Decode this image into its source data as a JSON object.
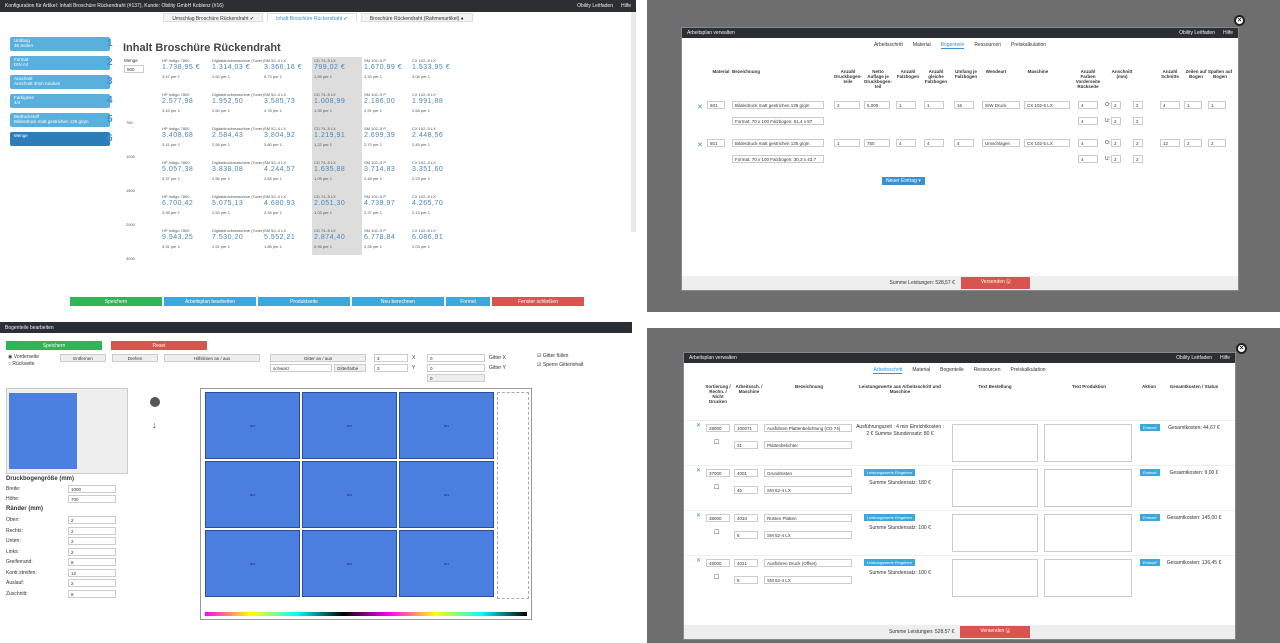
{
  "q1": {
    "title": "Konfiguration für Artikel: Inhalt Broschüre Rückendraht (#137), Kunde: Obility GmbH Koblenz (#16)",
    "links": [
      "Obility Leitfaden",
      "Hilfe"
    ],
    "tabs": [
      "Umschlag Broschüre Rückendraht ✔",
      "Inhalt Broschüre Rückendraht ✔",
      "Broschüre Rückendraht (Rahmenartikel) ●"
    ],
    "heading": "Inhalt Broschüre Rückendraht",
    "steps": [
      {
        "n": "1",
        "label": "Umfang",
        "value": "36 Seiten"
      },
      {
        "n": "2",
        "label": "Format",
        "value": "DIN A4"
      },
      {
        "n": "3",
        "label": "Anschnitt",
        "value": "Anschnitt 3mm rundum"
      },
      {
        "n": "4",
        "label": "Farbigkeit",
        "value": "4/4"
      },
      {
        "n": "5",
        "label": "Bedruckstoff",
        "value": "Bilderdruck matt gestrichen 135 g/qm"
      },
      {
        "n": "6",
        "label": "Menge",
        "value": ""
      }
    ],
    "menge_label": "Menge",
    "menge_value": "500",
    "quantities": [
      "500",
      "750",
      "1000",
      "1500",
      "2000",
      "3000"
    ],
    "machines": [
      "HP Indigo 7800",
      "Digitaldruckmaschine (Toner)",
      "SM 52–4 LX",
      "CD 74–5 LX",
      "SM 102–5 P",
      "CX 102–5 LX"
    ],
    "prices": [
      [
        "1.738,95 €",
        "1.314,03 €",
        "3.366,16 €",
        "799,02 €",
        "1.670,99 €",
        "1.533,95 €"
      ],
      [
        "2.577,98",
        "1.952,50",
        "3.585,73",
        "1.008,99",
        "2.186,00",
        "1.991,88"
      ],
      [
        "3.408,68",
        "2.584,43",
        "3.804,92",
        "1.219,91",
        "2.699,39",
        "2.448,56"
      ],
      [
        "5.057,38",
        "3.838,08",
        "4.244,57",
        "1.635,88",
        "3.714,83",
        "3.351,60"
      ],
      [
        "6.700,42",
        "5.075,13",
        "4.680,93",
        "2.051,30",
        "4.739,97",
        "4.265,70"
      ],
      [
        "9.943,25",
        "7.530,20",
        "5.552,21",
        "2.874,40",
        "6.778,84",
        "6.086,91"
      ]
    ],
    "per1": [
      [
        "3,47 per 1",
        "2,62 per 1",
        "6,73 per 1",
        "1,59 per 1",
        "3,34 per 1",
        "3,06 per 1"
      ],
      [
        "3,44 per 1",
        "2,60 per 1",
        "4,78 per 1",
        "1,35 per 1",
        "2,91 per 1",
        "2,66 per 1"
      ],
      [
        "3,41 per 1",
        "2,58 per 1",
        "3,80 per 1",
        "1,22 per 1",
        "2,70 per 1",
        "2,45 per 1"
      ],
      [
        "3,37 per 1",
        "2,56 per 1",
        "2,83 per 1",
        "1,09 per 1",
        "2,48 per 1",
        "2,23 per 1"
      ],
      [
        "3,35 per 1",
        "2,54 per 1",
        "2,34 per 1",
        "1,03 per 1",
        "2,37 per 1",
        "2,13 per 1"
      ],
      [
        "3,31 per 1",
        "2,51 per 1",
        "1,85 per 1",
        "0,96 per 1",
        "2,26 per 1",
        "2,03 per 1"
      ]
    ],
    "buttons": [
      "Speichern",
      "Arbeitsplan bearbeiten",
      "Produktseite",
      "Neu berechnen",
      "Formel",
      "Fenster schließen"
    ]
  },
  "q2": {
    "title": "Arbeitsplan verwalten",
    "links": [
      "Obility Leitfaden",
      "Hilfe"
    ],
    "tabs": [
      "Arbeitsschritt",
      "Material",
      "Bogenteile",
      "Ressourcen",
      "Preiskalkulation"
    ],
    "headers": [
      "Material",
      "Bezeichnung",
      "Anzahl Druckbogen-teile",
      "Netto Auflage je Druckbogen-teil",
      "Anzahl Falzbogen",
      "Anzahl gleiche Falzbogen",
      "Umfang je Falzbogen",
      "Wendeart",
      "Maschine",
      "Anzahl Farben Vorderseite Rückseite",
      "Anschnitt (mm)",
      "Anzahl Schnitte",
      "Zeilen auf Bogen",
      "Spalten auf Bogen"
    ],
    "rows": [
      {
        "mat": "601",
        "bez": "Bilderdruck matt gestrichen 135 g/qm",
        "fmt": "Format: 70 x 100 Falzbogen: 61,4 x 87",
        "a": "2",
        "b": "5.000",
        "c": "1",
        "d": "1",
        "e": "16",
        "wende": "S/W Druck",
        "masch": "CX 102-5 LX",
        "f1": "4",
        "f2": "4",
        "o": "2",
        "u": "2",
        "r": "2",
        "l": "2",
        "s": "4",
        "z": "1",
        "sp": "1"
      },
      {
        "mat": "601",
        "bez": "Bilderdruck matt gestrichen 135 g/qm",
        "fmt": "Format: 70 x 100 Falzbogen: 30,3 x 43,7",
        "a": "1",
        "b": "750",
        "c": "4",
        "d": "4",
        "e": "4",
        "wende": "Umschlagen",
        "masch": "CX 102-5 LX",
        "f1": "4",
        "f2": "4",
        "o": "2",
        "u": "2",
        "r": "2",
        "l": "2",
        "s": "12",
        "z": "2",
        "sp": "2"
      }
    ],
    "new_entry": "Neuer Eintrag ▾",
    "sum": "Summe Leistungen: 528,57 €",
    "send": "Versenden 🖫"
  },
  "q3": {
    "title": "Bogenteile bearbeiten",
    "save": "Speichern",
    "reset": "Reset",
    "radio": [
      "Vorderseite",
      "Rückseite"
    ],
    "tools": [
      "Entfernen",
      "Drehen",
      "Hilfslinien an / aus",
      "Gitter an / aus"
    ],
    "color": "schwarz",
    "gitterfarbe": "Gitterfarbe",
    "fields": {
      "a": "3",
      "b": "3",
      "c": "0",
      "d": "0",
      "e": "0",
      "x": "X",
      "y": "Y"
    },
    "gitter": [
      "Gitter X",
      "Gitter Y"
    ],
    "checks": [
      "Gitter füllen",
      "Sperre Gitterinhalt"
    ],
    "size_title": "Druckbogengröße (mm)",
    "breite": "Breite:",
    "breite_v": "1000",
    "hoehe": "Höhe:",
    "hoehe_v": "700",
    "raender": "Ränder (mm)",
    "margins": [
      [
        "Oben:",
        "2"
      ],
      [
        "Rechts:",
        "2"
      ],
      [
        "Unten:",
        "2"
      ],
      [
        "Links:",
        "2"
      ],
      [
        "Greiferrand:",
        "8"
      ],
      [
        "Kontr.streifen:",
        "12"
      ],
      [
        "Auslauf:",
        "2"
      ],
      [
        "Zuschnitt:",
        "8"
      ]
    ],
    "cell": "601"
  },
  "q4": {
    "title": "Arbeitsplan verwalten",
    "links": [
      "Obility Leitfaden",
      "Hilfe"
    ],
    "tabs": [
      "Arbeitsschritt",
      "Material",
      "Bogenteile",
      "Ressourcen",
      "Preiskalkulation"
    ],
    "headers": [
      "Sortierung / Rechn. / Nicht Drucken",
      "Arbeitssch. / Maschine",
      "Bezeichnung",
      "Leistungswerte aus Arbeitsschritt und Maschine",
      "Text Bestellung",
      "Text Produktion",
      "Aktion",
      "Gesamtkosten / Status"
    ],
    "rows": [
      {
        "sort": "28000",
        "num": "100071",
        "bez": "Ausführen Plattenbelichtung (CD 74)",
        "sub": "31",
        "bez2": "Plattenbelichter",
        "info": "Ausführungszeit : 4 min Einrichtkosten : 2 € Summe Stundensatz: 80 €",
        "btn": "",
        "total": "Gesamtkosten: 44,67 €"
      },
      {
        "sort": "37000",
        "num": "4001",
        "bez": "Grundrüsten",
        "sub": "4b",
        "bez2": "SM 52-4 LX",
        "info": "Summe Stundensatz: 180 €",
        "btn": "Leistungswerte Eingeben",
        "total": "Gesamtkosten: 9,00 €"
      },
      {
        "sort": "38000",
        "num": "4010",
        "bez": "Rüsten Platten",
        "sub": "8",
        "bez2": "SM 52-4 LX",
        "info": "Summe Stundensatz: 100 €",
        "btn": "Leistungswerte Eingeben",
        "total": "Gesamtkosten: 145,00 €"
      },
      {
        "sort": "45000",
        "num": "4021",
        "bez": "Ausführen Druck (Offset)",
        "sub": "8",
        "bez2": "SM 52-4 LX",
        "info": "Summe Stundensatz: 100 €",
        "btn": "Leistungswerte Eingeben",
        "total": "Gesamtkosten: 136,45 €"
      }
    ],
    "action": "Entwurf",
    "sum": "Summe Leistungen: 528,57 €",
    "send": "Versenden 🖫"
  }
}
